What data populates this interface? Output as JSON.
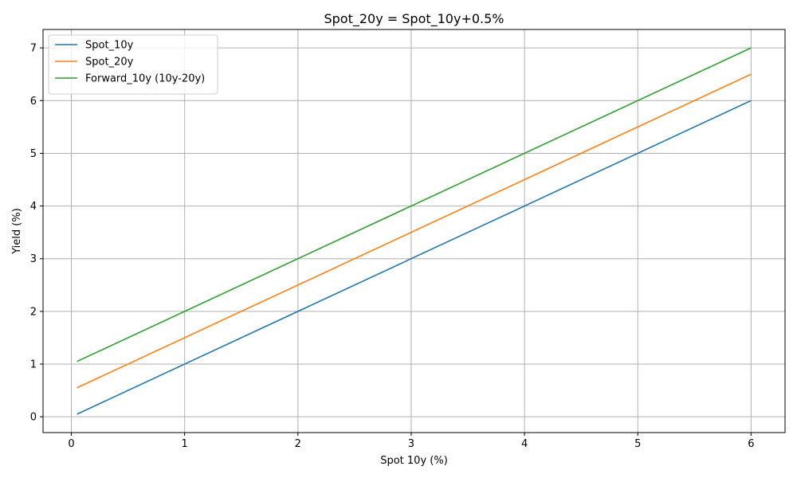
{
  "chart_data": {
    "type": "line",
    "title": "Spot_20y = Spot_10y+0.5%",
    "xlabel": "Spot 10y (%)",
    "ylabel": "Yield (%)",
    "xlim": [
      -0.25,
      6.3
    ],
    "ylim": [
      -0.3,
      7.35
    ],
    "xticks": [
      0,
      1,
      2,
      3,
      4,
      5,
      6
    ],
    "yticks": [
      0,
      1,
      2,
      3,
      4,
      5,
      6,
      7
    ],
    "grid": true,
    "legend_position": "upper-left",
    "x": [
      0.05,
      6.0
    ],
    "series": [
      {
        "name": "Spot_10y",
        "color": "#1f77b4",
        "values": [
          0.05,
          6.0
        ]
      },
      {
        "name": "Spot_20y",
        "color": "#ff7f0e",
        "values": [
          0.55,
          6.5
        ]
      },
      {
        "name": "Forward_10y (10y-20y)",
        "color": "#2ca02c",
        "values": [
          1.05,
          7.0
        ]
      }
    ]
  }
}
